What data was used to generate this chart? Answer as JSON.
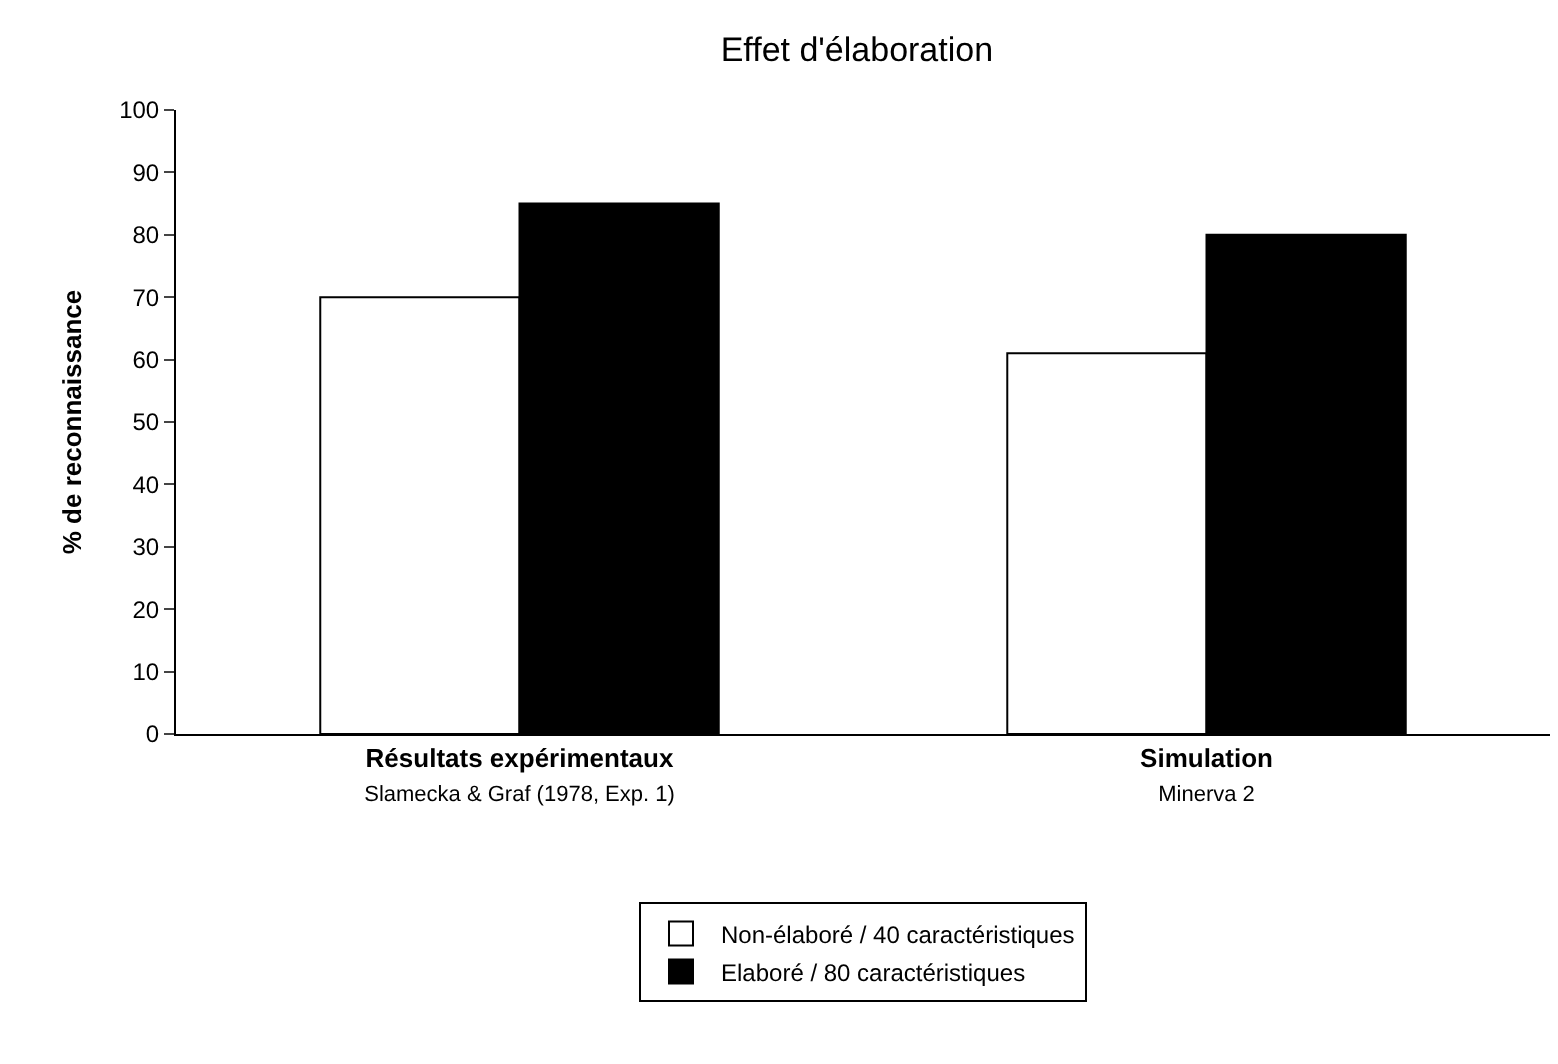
{
  "chart_data": {
    "type": "bar",
    "title": "Effet d'élaboration",
    "ylabel": "% de reconnaissance",
    "categories": [
      "Résultats expérimentaux\nSlamecka & Graf (1978, Exp. 1)",
      "Simulation\nMinerva 2"
    ],
    "series": [
      {
        "name": "Non-élaboré / 40 caractéristiques",
        "color": "#ffffff",
        "values": [
          70,
          61
        ]
      },
      {
        "name": "Elaboré / 80 caractéristiques",
        "color": "#000000",
        "values": [
          85,
          80
        ]
      }
    ],
    "ylim": [
      0,
      100
    ],
    "yticks": [
      0,
      10,
      20,
      30,
      40,
      50,
      60,
      70,
      80,
      90,
      100
    ],
    "grid": false,
    "legend": "bottom"
  }
}
